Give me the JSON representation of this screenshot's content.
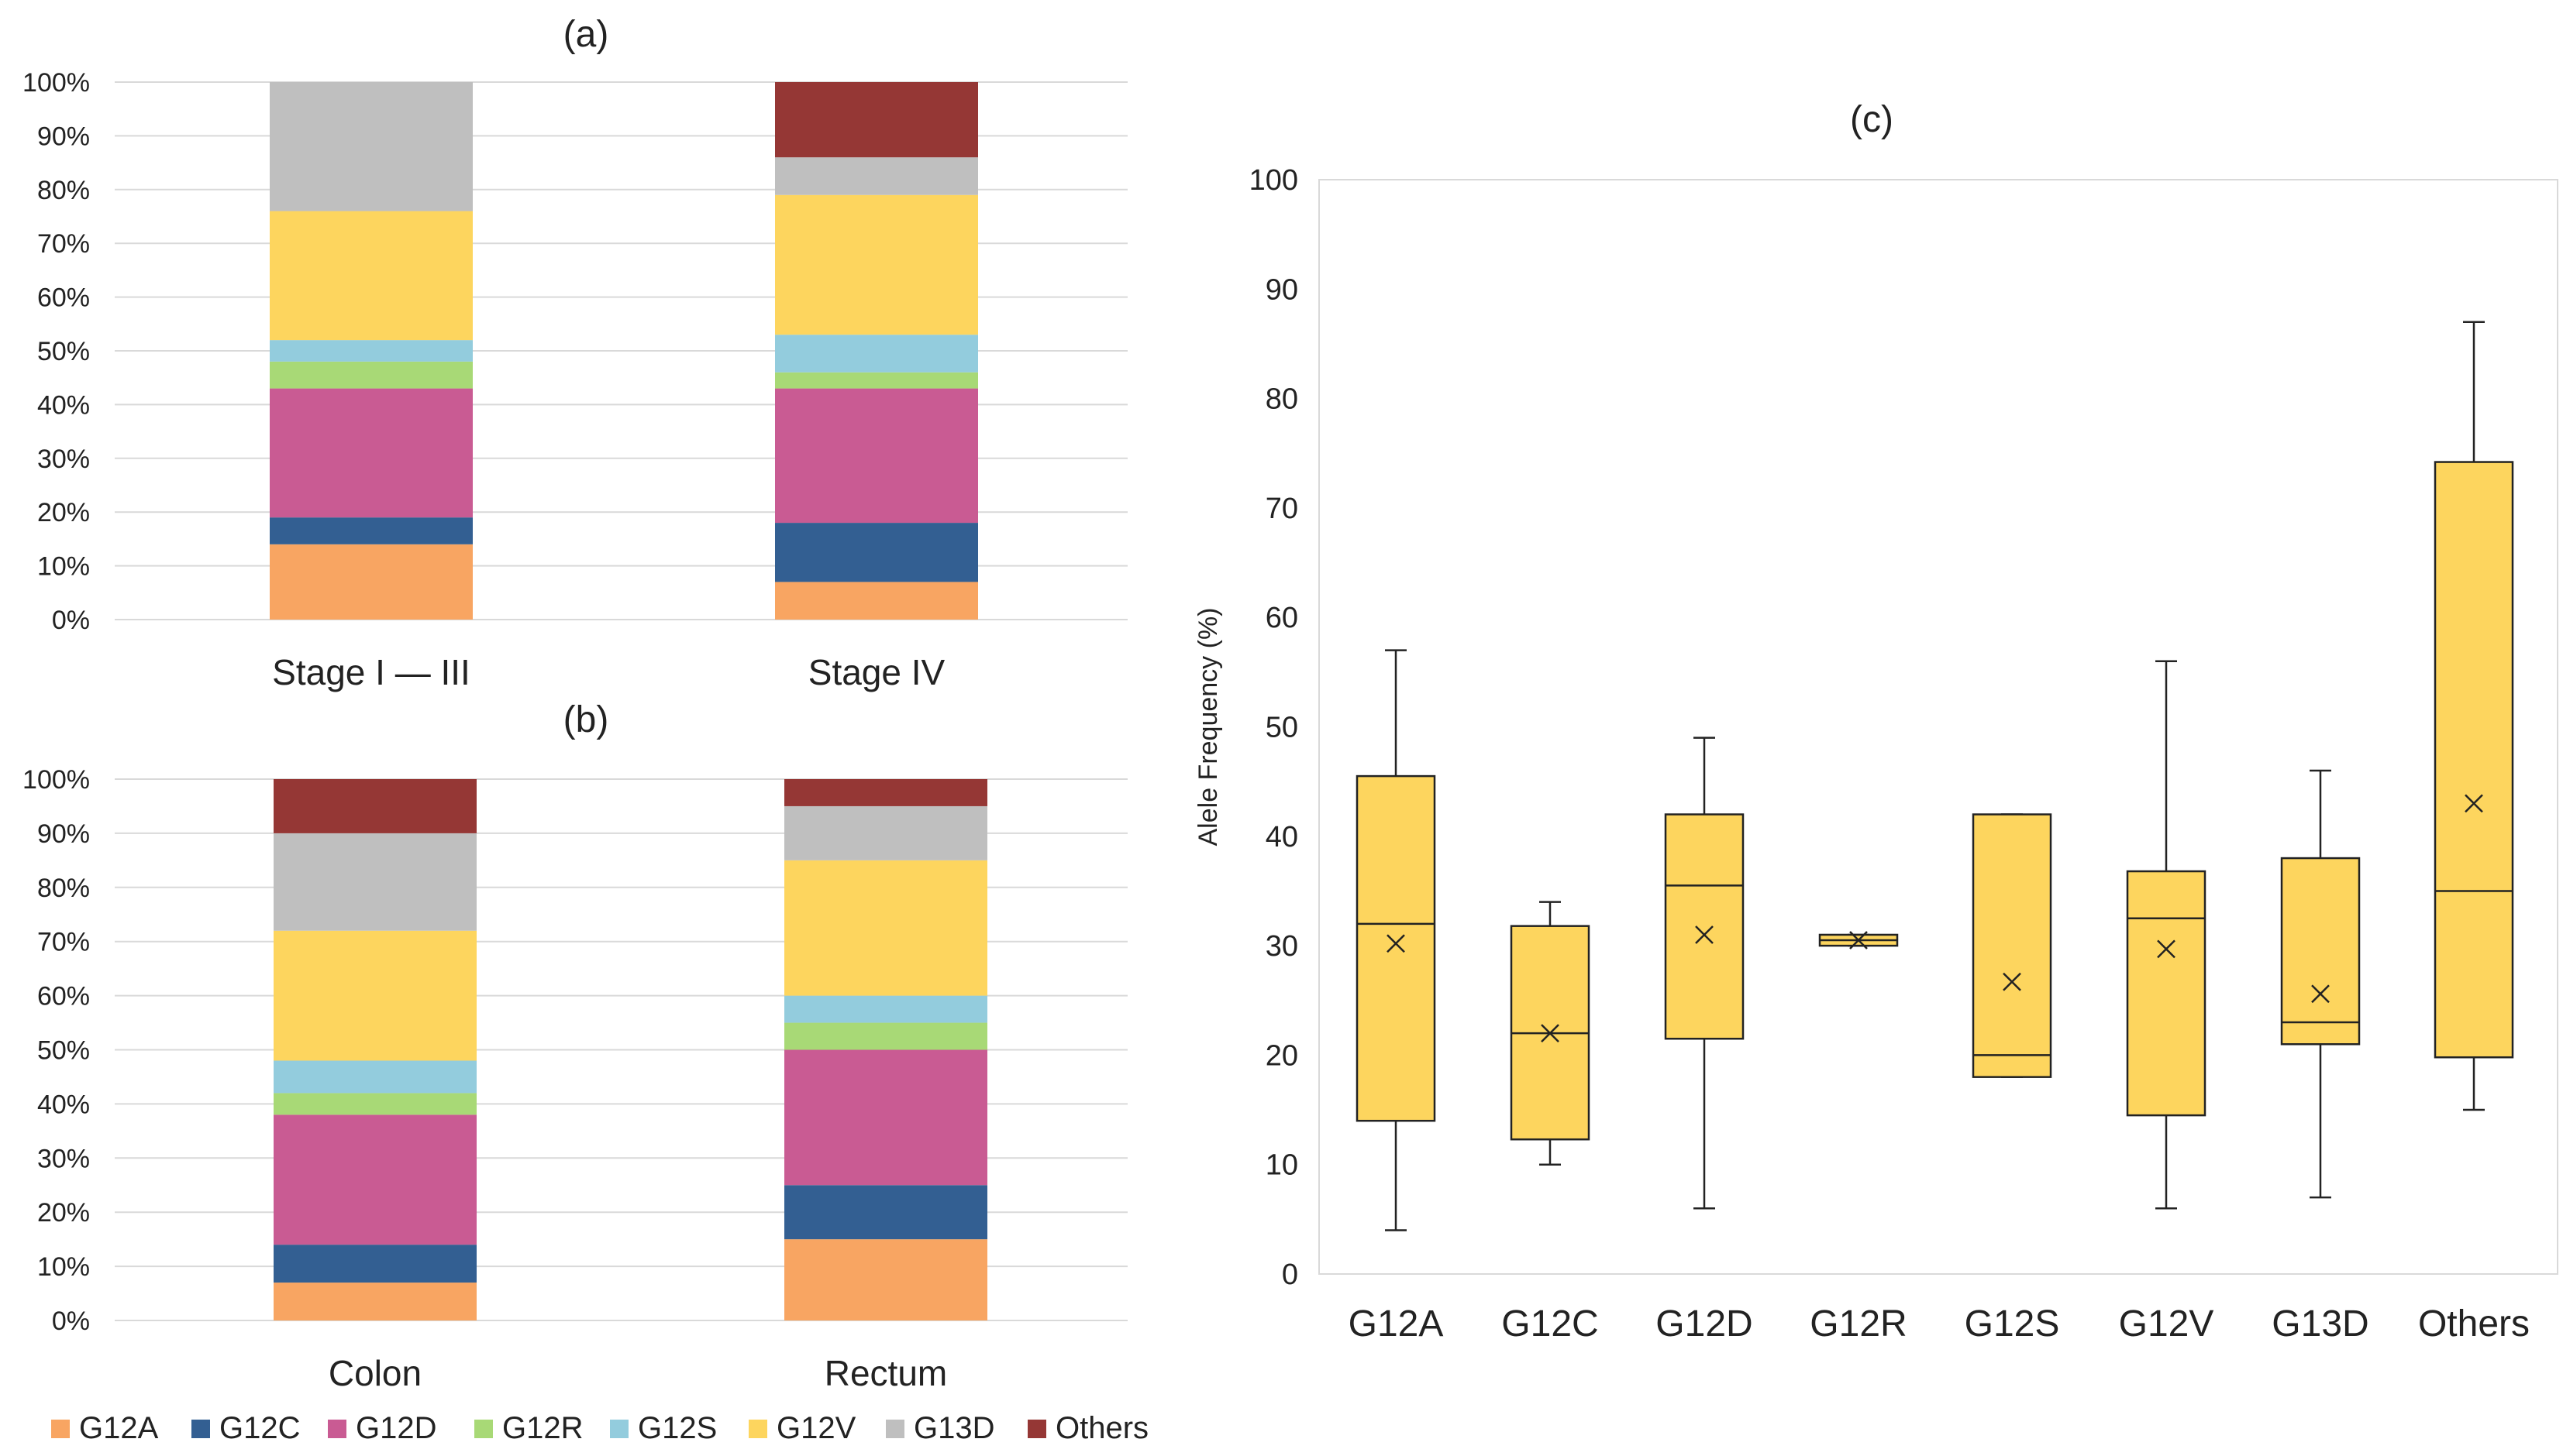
{
  "series_names": [
    "G12A",
    "G12C",
    "G12D",
    "G12R",
    "G12S",
    "G12V",
    "G13D",
    "Others"
  ],
  "colors": {
    "G12A": "#f8a562",
    "G12C": "#335f92",
    "G12D": "#c95b93",
    "G12R": "#a8d976",
    "G12S": "#93ccdd",
    "G12V": "#fdd55e",
    "G13D": "#bfbfbf",
    "Others": "#953735",
    "box_fill": "#fdd55e",
    "grid": "#d9d9d9"
  },
  "chart_data": [
    {
      "type": "bar",
      "stacked": true,
      "title": "(a)",
      "categories": [
        "Stage I — III",
        "Stage IV"
      ],
      "y_ticks": [
        "0%",
        "10%",
        "20%",
        "30%",
        "40%",
        "50%",
        "60%",
        "70%",
        "80%",
        "90%",
        "100%"
      ],
      "ylim": [
        0,
        100
      ],
      "grid": true,
      "series": [
        {
          "name": "G12A",
          "values": [
            14,
            7
          ]
        },
        {
          "name": "G12C",
          "values": [
            5,
            11
          ]
        },
        {
          "name": "G12D",
          "values": [
            24,
            25
          ]
        },
        {
          "name": "G12R",
          "values": [
            5,
            3
          ]
        },
        {
          "name": "G12S",
          "values": [
            4,
            7
          ]
        },
        {
          "name": "G12V",
          "values": [
            24,
            26
          ]
        },
        {
          "name": "G13D",
          "values": [
            24,
            7
          ]
        },
        {
          "name": "Others",
          "values": [
            0,
            14
          ]
        }
      ]
    },
    {
      "type": "bar",
      "stacked": true,
      "title": "(b)",
      "categories": [
        "Colon",
        "Rectum"
      ],
      "y_ticks": [
        "0%",
        "10%",
        "20%",
        "30%",
        "40%",
        "50%",
        "60%",
        "70%",
        "80%",
        "90%",
        "100%"
      ],
      "ylim": [
        0,
        100
      ],
      "grid": true,
      "legend_position": "bottom",
      "series": [
        {
          "name": "G12A",
          "values": [
            7,
            15
          ]
        },
        {
          "name": "G12C",
          "values": [
            7,
            10
          ]
        },
        {
          "name": "G12D",
          "values": [
            24,
            25
          ]
        },
        {
          "name": "G12R",
          "values": [
            4,
            5
          ]
        },
        {
          "name": "G12S",
          "values": [
            6,
            5
          ]
        },
        {
          "name": "G12V",
          "values": [
            24,
            25
          ]
        },
        {
          "name": "G13D",
          "values": [
            18,
            10
          ]
        },
        {
          "name": "Others",
          "values": [
            10,
            5
          ]
        }
      ]
    },
    {
      "type": "box",
      "title": "(c)",
      "ylabel": "Alele Frequency (%)",
      "ylim": [
        0,
        100
      ],
      "y_ticks": [
        "0",
        "10",
        "20",
        "30",
        "40",
        "50",
        "60",
        "70",
        "80",
        "90",
        "100"
      ],
      "categories": [
        "G12A",
        "G12C",
        "G12D",
        "G12R",
        "G12S",
        "G12V",
        "G13D",
        "Others"
      ],
      "boxes": [
        {
          "name": "G12A",
          "min": 4,
          "q1": 14,
          "median": 32,
          "q3": 45.5,
          "max": 57,
          "mean": 30.2
        },
        {
          "name": "G12C",
          "min": 10,
          "q1": 12.3,
          "median": 22,
          "q3": 31.8,
          "max": 34,
          "mean": 22
        },
        {
          "name": "G12D",
          "min": 6,
          "q1": 21.5,
          "median": 35.5,
          "q3": 42,
          "max": 49,
          "mean": 31
        },
        {
          "name": "G12R",
          "min": 30,
          "q1": 30,
          "median": 30.5,
          "q3": 31,
          "max": 31,
          "mean": 30.5
        },
        {
          "name": "G12S",
          "min": 18,
          "q1": 18,
          "median": 20,
          "q3": 42,
          "max": 42,
          "mean": 26.7
        },
        {
          "name": "G12V",
          "min": 6,
          "q1": 14.5,
          "median": 32.5,
          "q3": 36.8,
          "max": 56,
          "mean": 29.7
        },
        {
          "name": "G13D",
          "min": 7,
          "q1": 21,
          "median": 23,
          "q3": 38,
          "max": 46,
          "mean": 25.6
        },
        {
          "name": "Others",
          "min": 15,
          "q1": 19.8,
          "median": 35,
          "q3": 74.2,
          "max": 87,
          "mean": 43
        }
      ]
    }
  ]
}
